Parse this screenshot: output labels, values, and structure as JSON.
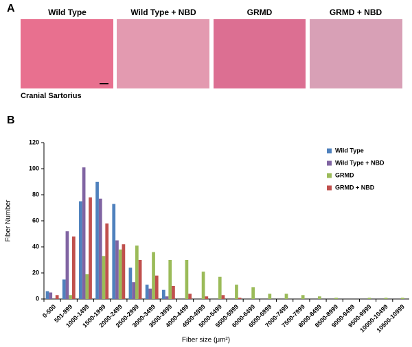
{
  "panel_a": {
    "label": "A",
    "titles": [
      "Wild Type",
      "Wild Type + NBD",
      "GRMD",
      "GRMD + NBD"
    ],
    "caption": "Cranial Sartorius"
  },
  "panel_b_label": "B",
  "chart_data": {
    "type": "bar",
    "x_label": "Fiber size (μm²)",
    "y_label": "Fiber Number",
    "categories": [
      "0-500",
      "501-999",
      "1000-1499",
      "1500-1999",
      "2000-2499",
      "2500-2999",
      "3000-3499",
      "3500-3999",
      "4000-4499",
      "4500-4999",
      "5000-5499",
      "5500-5999",
      "6000-6499",
      "6500-6999",
      "7000-7499",
      "7500-7999",
      "8000-8499",
      "8500-8999",
      "9000-9499",
      "9500-9999",
      "10000-10499",
      "10500-10999"
    ],
    "series": [
      {
        "name": "Wild Type",
        "color": "#4f81bd",
        "values": [
          6,
          15,
          75,
          90,
          73,
          24,
          11,
          7,
          0,
          0,
          0,
          0,
          0,
          0,
          0,
          0,
          0,
          0,
          0,
          0,
          0,
          0
        ]
      },
      {
        "name": "Wild Type + NBD",
        "color": "#8064a2",
        "values": [
          5,
          52,
          101,
          77,
          45,
          13,
          8,
          2,
          0,
          0,
          0,
          0,
          0,
          0,
          0,
          0,
          0,
          0,
          0,
          0,
          0,
          0
        ]
      },
      {
        "name": "GRMD",
        "color": "#9bbb59",
        "values": [
          0,
          3,
          19,
          33,
          38,
          41,
          36,
          30,
          30,
          21,
          17,
          11,
          9,
          4,
          4,
          3,
          2,
          1,
          0,
          1,
          1,
          1
        ]
      },
      {
        "name": "GRMD + NBD",
        "color": "#c0504d",
        "values": [
          3,
          48,
          78,
          58,
          42,
          30,
          18,
          10,
          4,
          2,
          3,
          1,
          0,
          0,
          0,
          0,
          0,
          0,
          0,
          0,
          0,
          0
        ]
      }
    ],
    "ylim": [
      0,
      120
    ],
    "yticks": [
      0,
      20,
      40,
      60,
      80,
      100,
      120
    ],
    "legend": "upper right",
    "grid": false
  }
}
